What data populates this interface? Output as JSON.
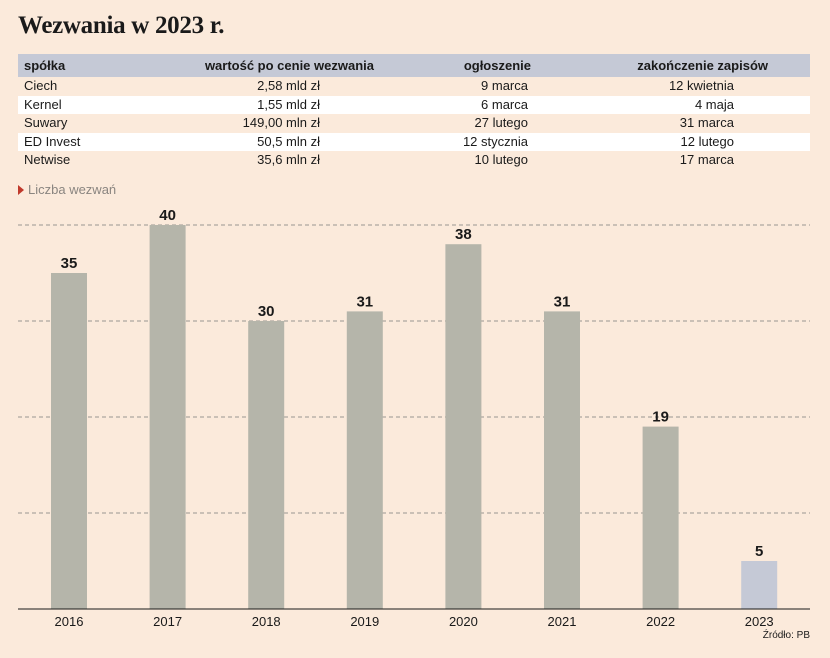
{
  "title": "Wezwania w 2023 r.",
  "table": {
    "headers": [
      "spółka",
      "wartość po cenie wezwania",
      "ogłoszenie",
      "zakończenie zapisów"
    ],
    "rows": [
      [
        "Ciech",
        "2,58 mld zł",
        "9 marca",
        "12 kwietnia"
      ],
      [
        "Kernel",
        "1,55 mld zł",
        "6 marca",
        "4 maja"
      ],
      [
        "Suwary",
        "149,00 mln zł",
        "27 lutego",
        "31 marca"
      ],
      [
        "ED Invest",
        "50,5 mln zł",
        "12 stycznia",
        "12 lutego"
      ],
      [
        "Netwise",
        "35,6 mln zł",
        "10 lutego",
        "17 marca"
      ]
    ]
  },
  "series_note": "Liczba wezwań",
  "source": "Źródło: PB",
  "colors": {
    "background": "#fbeadb",
    "bar": "#b5b5aa",
    "bar_highlight": "#c5c9d6",
    "table_header": "#c5c9d6",
    "marker": "#c0392b"
  },
  "chart_data": {
    "type": "bar",
    "categories": [
      "2016",
      "2017",
      "2018",
      "2019",
      "2020",
      "2021",
      "2022",
      "2023"
    ],
    "values": [
      35,
      40,
      30,
      31,
      38,
      31,
      19,
      5
    ],
    "highlight_category": "2023",
    "ylim": [
      0,
      40
    ],
    "grid": true,
    "gridlines": [
      10,
      20,
      30,
      40
    ],
    "data_labels": true
  }
}
